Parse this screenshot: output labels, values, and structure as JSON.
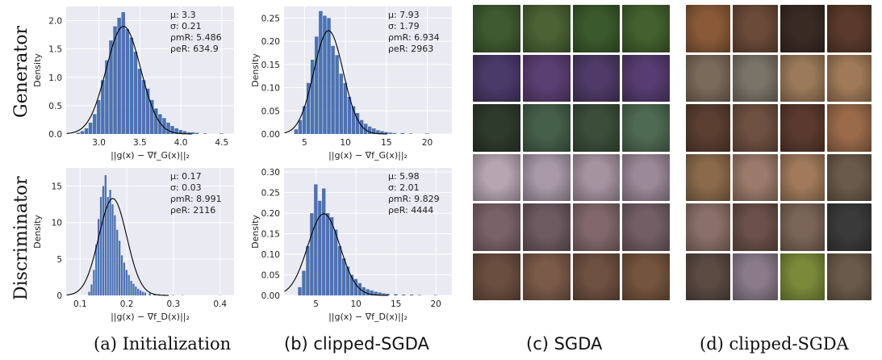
{
  "row_labels": {
    "generator": "Generator",
    "discriminator": "Discriminator"
  },
  "captions": {
    "a": "(a) Initialization",
    "b": "(b) clipped-SGDA",
    "c": "(c) SGDA",
    "d": "(d) clipped-SGDA"
  },
  "colors": {
    "bar": "#4c72b0",
    "panel_bg": "#eaeaf2",
    "grid": "#ffffff",
    "curve": "#000000"
  },
  "chart_data": [
    {
      "id": "init-generator",
      "type": "bar",
      "subtype": "histogram-with-normal-fit",
      "xlabel": "||g(x) − ∇f_G(x)||₂",
      "ylabel": "Density",
      "xlim": [
        2.6,
        4.65
      ],
      "ylim": [
        0,
        2.25
      ],
      "xticks": [
        3.0,
        3.5,
        4.0,
        4.5
      ],
      "yticks": [
        0.0,
        0.5,
        1.0,
        1.5,
        2.0
      ],
      "stats": {
        "mu": 3.3,
        "sigma": 0.21,
        "rho_mR": 5.486,
        "rho_eR": 634.9
      },
      "stats_text": [
        "μ: 3.3",
        "σ: 0.21",
        "ρmR: 5.486",
        "ρeR: 634.9"
      ],
      "bins": [
        2.75,
        2.8,
        2.85,
        2.9,
        2.95,
        3.0,
        3.05,
        3.1,
        3.15,
        3.2,
        3.25,
        3.3,
        3.35,
        3.4,
        3.45,
        3.5,
        3.55,
        3.6,
        3.65,
        3.7,
        3.75,
        3.8,
        3.85,
        3.9,
        3.95,
        4.0,
        4.05,
        4.1,
        4.15,
        4.2,
        4.3,
        4.5
      ],
      "values": [
        0.02,
        0.05,
        0.1,
        0.2,
        0.35,
        0.6,
        0.95,
        1.3,
        1.65,
        1.9,
        2.05,
        2.15,
        1.85,
        1.7,
        1.45,
        1.15,
        0.95,
        0.8,
        0.6,
        0.45,
        0.35,
        0.28,
        0.2,
        0.14,
        0.1,
        0.07,
        0.05,
        0.03,
        0.03,
        0.02,
        0.01,
        0.01
      ],
      "bin_width": 0.05
    },
    {
      "id": "clipped-generator",
      "type": "bar",
      "subtype": "histogram-with-normal-fit",
      "xlabel": "||g(x) − ∇f_G(x)||₂",
      "ylabel": "Density",
      "xlim": [
        2.5,
        23
      ],
      "ylim": [
        0,
        0.275
      ],
      "xticks": [
        5,
        10,
        15,
        20
      ],
      "yticks": [
        0.0,
        0.05,
        0.1,
        0.15,
        0.2,
        0.25
      ],
      "stats": {
        "mu": 7.93,
        "sigma": 1.79,
        "rho_mR": 6.934,
        "rho_eR": 2963
      },
      "stats_text": [
        "μ: 7.93",
        "σ: 1.79",
        "ρmR: 6.934",
        "ρeR: 2963"
      ],
      "bins": [
        4.0,
        4.5,
        5.0,
        5.5,
        6.0,
        6.5,
        7.0,
        7.5,
        8.0,
        8.5,
        9.0,
        9.5,
        10.0,
        10.5,
        11.0,
        11.5,
        12.0,
        12.5,
        13.0,
        13.5,
        14.0,
        14.5,
        15.0,
        15.5,
        16.0,
        17.0,
        18.0,
        20.0
      ],
      "values": [
        0.01,
        0.03,
        0.06,
        0.11,
        0.16,
        0.21,
        0.265,
        0.255,
        0.25,
        0.19,
        0.17,
        0.13,
        0.11,
        0.08,
        0.06,
        0.045,
        0.03,
        0.022,
        0.016,
        0.012,
        0.008,
        0.006,
        0.004,
        0.003,
        0.002,
        0.002,
        0.001,
        0.001
      ],
      "bin_width": 0.5
    },
    {
      "id": "init-discriminator",
      "type": "bar",
      "subtype": "histogram-with-normal-fit",
      "xlabel": "||g(x) − ∇f_D(x)||₂",
      "ylabel": "Density",
      "xlim": [
        0.07,
        0.43
      ],
      "ylim": [
        0,
        17.5
      ],
      "xticks": [
        0.1,
        0.2,
        0.3,
        0.4
      ],
      "yticks": [
        0,
        5,
        10,
        15
      ],
      "stats": {
        "mu": 0.17,
        "sigma": 0.03,
        "rho_mR": 8.991,
        "rho_eR": 2116
      },
      "stats_text": [
        "μ: 0.17",
        "σ: 0.03",
        "ρmR: 8.991",
        "ρeR: 2116"
      ],
      "bins": [
        0.12,
        0.125,
        0.13,
        0.135,
        0.14,
        0.145,
        0.15,
        0.155,
        0.16,
        0.165,
        0.17,
        0.175,
        0.18,
        0.185,
        0.19,
        0.195,
        0.2,
        0.205,
        0.21,
        0.215,
        0.22,
        0.225,
        0.23,
        0.235,
        0.24,
        0.25,
        0.26,
        0.27,
        0.28,
        0.3,
        0.32,
        0.4
      ],
      "values": [
        0.5,
        1.5,
        3.5,
        7.0,
        10.5,
        13.5,
        15.0,
        16.5,
        13.5,
        14.5,
        12.5,
        11.0,
        9.0,
        7.5,
        5.5,
        4.5,
        3.5,
        2.8,
        2.0,
        1.6,
        1.2,
        0.9,
        0.7,
        0.5,
        0.4,
        0.3,
        0.2,
        0.15,
        0.1,
        0.08,
        0.05,
        0.03
      ],
      "bin_width": 0.005
    },
    {
      "id": "clipped-discriminator",
      "type": "bar",
      "subtype": "histogram-with-normal-fit",
      "xlabel": "||g(x) − ∇f_D(x)||₂",
      "ylabel": "Density",
      "xlim": [
        1,
        22
      ],
      "ylim": [
        0,
        0.31
      ],
      "xticks": [
        5,
        10,
        15,
        20
      ],
      "yticks": [
        0.0,
        0.05,
        0.1,
        0.15,
        0.2,
        0.25,
        0.3
      ],
      "stats": {
        "mu": 5.98,
        "sigma": 2.01,
        "rho_mR": 9.829,
        "rho_eR": 4444
      },
      "stats_text": [
        "μ: 5.98",
        "σ: 2.01",
        "ρmR: 9.829",
        "ρeR: 4444"
      ],
      "bins": [
        3.0,
        3.5,
        4.0,
        4.5,
        5.0,
        5.5,
        6.0,
        6.5,
        7.0,
        7.5,
        8.0,
        8.5,
        9.0,
        9.5,
        10.0,
        10.5,
        11.0,
        11.5,
        12.0,
        12.5,
        13.0,
        13.5,
        14.0,
        15.0,
        16.0,
        17.0,
        18.0,
        20.0
      ],
      "values": [
        0.02,
        0.06,
        0.12,
        0.2,
        0.27,
        0.23,
        0.26,
        0.2,
        0.19,
        0.16,
        0.12,
        0.09,
        0.07,
        0.05,
        0.04,
        0.03,
        0.02,
        0.015,
        0.012,
        0.009,
        0.007,
        0.005,
        0.004,
        0.003,
        0.002,
        0.002,
        0.001,
        0.001
      ],
      "bin_width": 0.5
    }
  ],
  "image_grids": {
    "sgda": {
      "rows": 6,
      "cols": 4,
      "tile_colors": [
        [
          "#3f5a30",
          "#4a6234",
          "#3a5a2c",
          "#44602e"
        ],
        [
          "#4a3a6a",
          "#5a3f72",
          "#4f3a68",
          "#563c70"
        ],
        [
          "#2e3a2c",
          "#45604a",
          "#3b4e3a",
          "#4e6a52"
        ],
        [
          "#b7a6b0",
          "#a898a8",
          "#a693a0",
          "#9b8898"
        ],
        [
          "#7a6268",
          "#6d5a60",
          "#82686a",
          "#735e66"
        ],
        [
          "#6a4e3e",
          "#7a5a48",
          "#6e5040",
          "#74543e"
        ]
      ]
    },
    "clipped_sgda": {
      "rows": 6,
      "cols": 4,
      "tile_colors": [
        [
          "#8a5a38",
          "#6a4a38",
          "#3a2a24",
          "#5a3a2a"
        ],
        [
          "#7a6a5a",
          "#7a7468",
          "#9a7a5a",
          "#a07a58"
        ],
        [
          "#5a3e30",
          "#6e5040",
          "#5a3a2e",
          "#9a6a4a"
        ],
        [
          "#8a6a4a",
          "#9a7a6a",
          "#a07a5a",
          "#6a5a4a"
        ],
        [
          "#8a7068",
          "#6a5048",
          "#7a6458",
          "#3a3a3a"
        ],
        [
          "#5a4a42",
          "#8a7a8a",
          "#7a8a3a",
          "#6a5a4a"
        ]
      ]
    }
  }
}
